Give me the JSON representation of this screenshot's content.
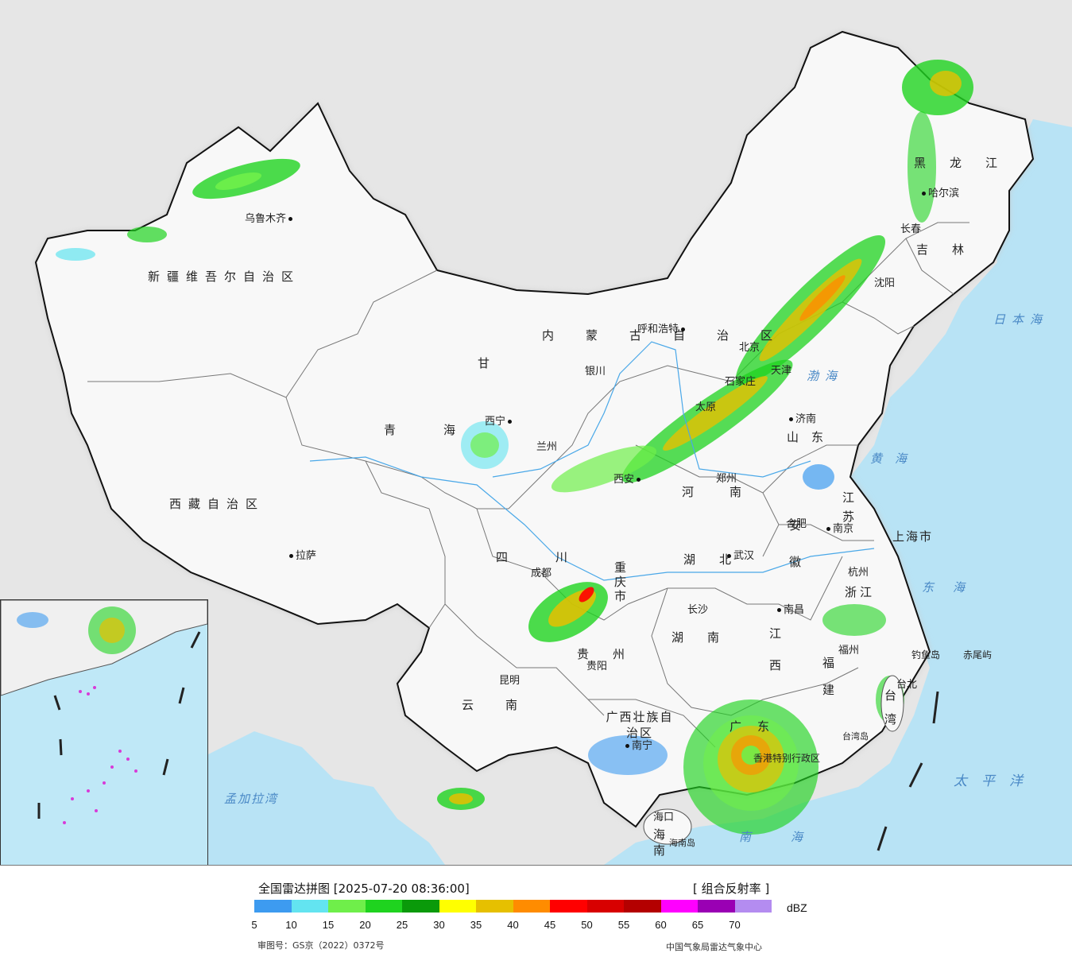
{
  "legend": {
    "title": "全国雷达拼图 [2025-07-20 08:36:00]",
    "product": "[ 组合反射率 ]",
    "unit": "dBZ",
    "ticks": [
      "5",
      "10",
      "15",
      "20",
      "25",
      "30",
      "35",
      "40",
      "45",
      "50",
      "55",
      "60",
      "65",
      "70"
    ],
    "colors": [
      "#3d9bf0",
      "#63e4f0",
      "#6fef4a",
      "#1fd31f",
      "#0a9a0a",
      "#ffff00",
      "#e6c000",
      "#ff8c00",
      "#ff0000",
      "#d80000",
      "#b40000",
      "#ff00ff",
      "#9a00b4",
      "#b48cf0"
    ],
    "approval": "审图号：GS京（2022）0372号",
    "credit": "中国气象局雷达气象中心"
  },
  "regions": [
    {
      "name": "xinjiang",
      "text": "新疆维吾尔自治区"
    },
    {
      "name": "xizang",
      "text": "西藏自治区"
    },
    {
      "name": "qinghai",
      "text": "青海"
    },
    {
      "name": "gansu",
      "text": "甘"
    },
    {
      "name": "sichuan",
      "text": "四川"
    },
    {
      "name": "yunnan",
      "text": "云南"
    },
    {
      "name": "guizhou",
      "text": "贵州"
    },
    {
      "name": "guangxi",
      "text": "广西壮族自治区"
    },
    {
      "name": "guangdong",
      "text": "广东"
    },
    {
      "name": "hunan",
      "text": "湖南"
    },
    {
      "name": "hubei",
      "text": "湖北"
    },
    {
      "name": "henan",
      "text": "河南"
    },
    {
      "name": "anhui",
      "text": "安徽"
    },
    {
      "name": "jiangsu",
      "text": "江苏"
    },
    {
      "name": "zhejiang",
      "text": "浙江"
    },
    {
      "name": "jiangxi",
      "text": "江西"
    },
    {
      "name": "fujian",
      "text": "福建"
    },
    {
      "name": "shandong",
      "text": "山东"
    },
    {
      "name": "heilongjiang",
      "text": "黑龙江"
    },
    {
      "name": "jilin",
      "text": "吉林"
    },
    {
      "name": "neimenggu",
      "text": "内蒙古自治区"
    },
    {
      "name": "taiwan",
      "text": "台湾"
    },
    {
      "name": "hainan",
      "text": "海南"
    },
    {
      "name": "chongqing",
      "text": "重庆市"
    },
    {
      "name": "shanghai",
      "text": "上海市"
    }
  ],
  "cities": [
    {
      "name": "urumqi",
      "text": "乌鲁木齐"
    },
    {
      "name": "lhasa",
      "text": "拉萨"
    },
    {
      "name": "xining",
      "text": "西宁"
    },
    {
      "name": "lanzhou",
      "text": "兰州"
    },
    {
      "name": "yinchuan",
      "text": "银川"
    },
    {
      "name": "huhehaote",
      "text": "呼和浩特"
    },
    {
      "name": "beijing",
      "text": "北京"
    },
    {
      "name": "tianjin",
      "text": "天津"
    },
    {
      "name": "shijiazhuang",
      "text": "石家庄"
    },
    {
      "name": "taiyuan",
      "text": "太原"
    },
    {
      "name": "jinan",
      "text": "济南"
    },
    {
      "name": "zhengzhou",
      "text": "郑州"
    },
    {
      "name": "xian",
      "text": "西安"
    },
    {
      "name": "chengdu",
      "text": "成都"
    },
    {
      "name": "kunming",
      "text": "昆明"
    },
    {
      "name": "guiyang",
      "text": "贵阳"
    },
    {
      "name": "nanning",
      "text": "南宁"
    },
    {
      "name": "changsha",
      "text": "长沙"
    },
    {
      "name": "wuhan",
      "text": "武汉"
    },
    {
      "name": "hefei",
      "text": "合肥"
    },
    {
      "name": "nanjing",
      "text": "南京"
    },
    {
      "name": "hangzhou",
      "text": "杭州"
    },
    {
      "name": "nanchang",
      "text": "南昌"
    },
    {
      "name": "fuzhou",
      "text": "福州"
    },
    {
      "name": "haerbin",
      "text": "哈尔滨"
    },
    {
      "name": "changchun",
      "text": "长春"
    },
    {
      "name": "shenyang",
      "text": "沈阳"
    },
    {
      "name": "haikou",
      "text": "海口"
    },
    {
      "name": "taibei",
      "text": "台北"
    }
  ],
  "seas": [
    {
      "name": "riben-hai",
      "text": "日本海"
    },
    {
      "name": "bo-hai",
      "text": "渤海"
    },
    {
      "name": "huang-hai",
      "text": "黄海"
    },
    {
      "name": "dong-hai",
      "text": "东海"
    },
    {
      "name": "nan-hai",
      "text": "南海"
    },
    {
      "name": "taiping-yang",
      "text": "太平洋"
    },
    {
      "name": "mengjiala-wan",
      "text": "孟加拉湾"
    }
  ],
  "islands": [
    {
      "name": "diaoyu-dao",
      "text": "钓鱼岛"
    },
    {
      "name": "chiwei-yu",
      "text": "赤尾屿"
    },
    {
      "name": "hainan-dao",
      "text": "海南岛"
    },
    {
      "name": "taiwan-dao",
      "text": "台湾岛"
    },
    {
      "name": "hongkong",
      "text": "香港特别行政区"
    }
  ]
}
